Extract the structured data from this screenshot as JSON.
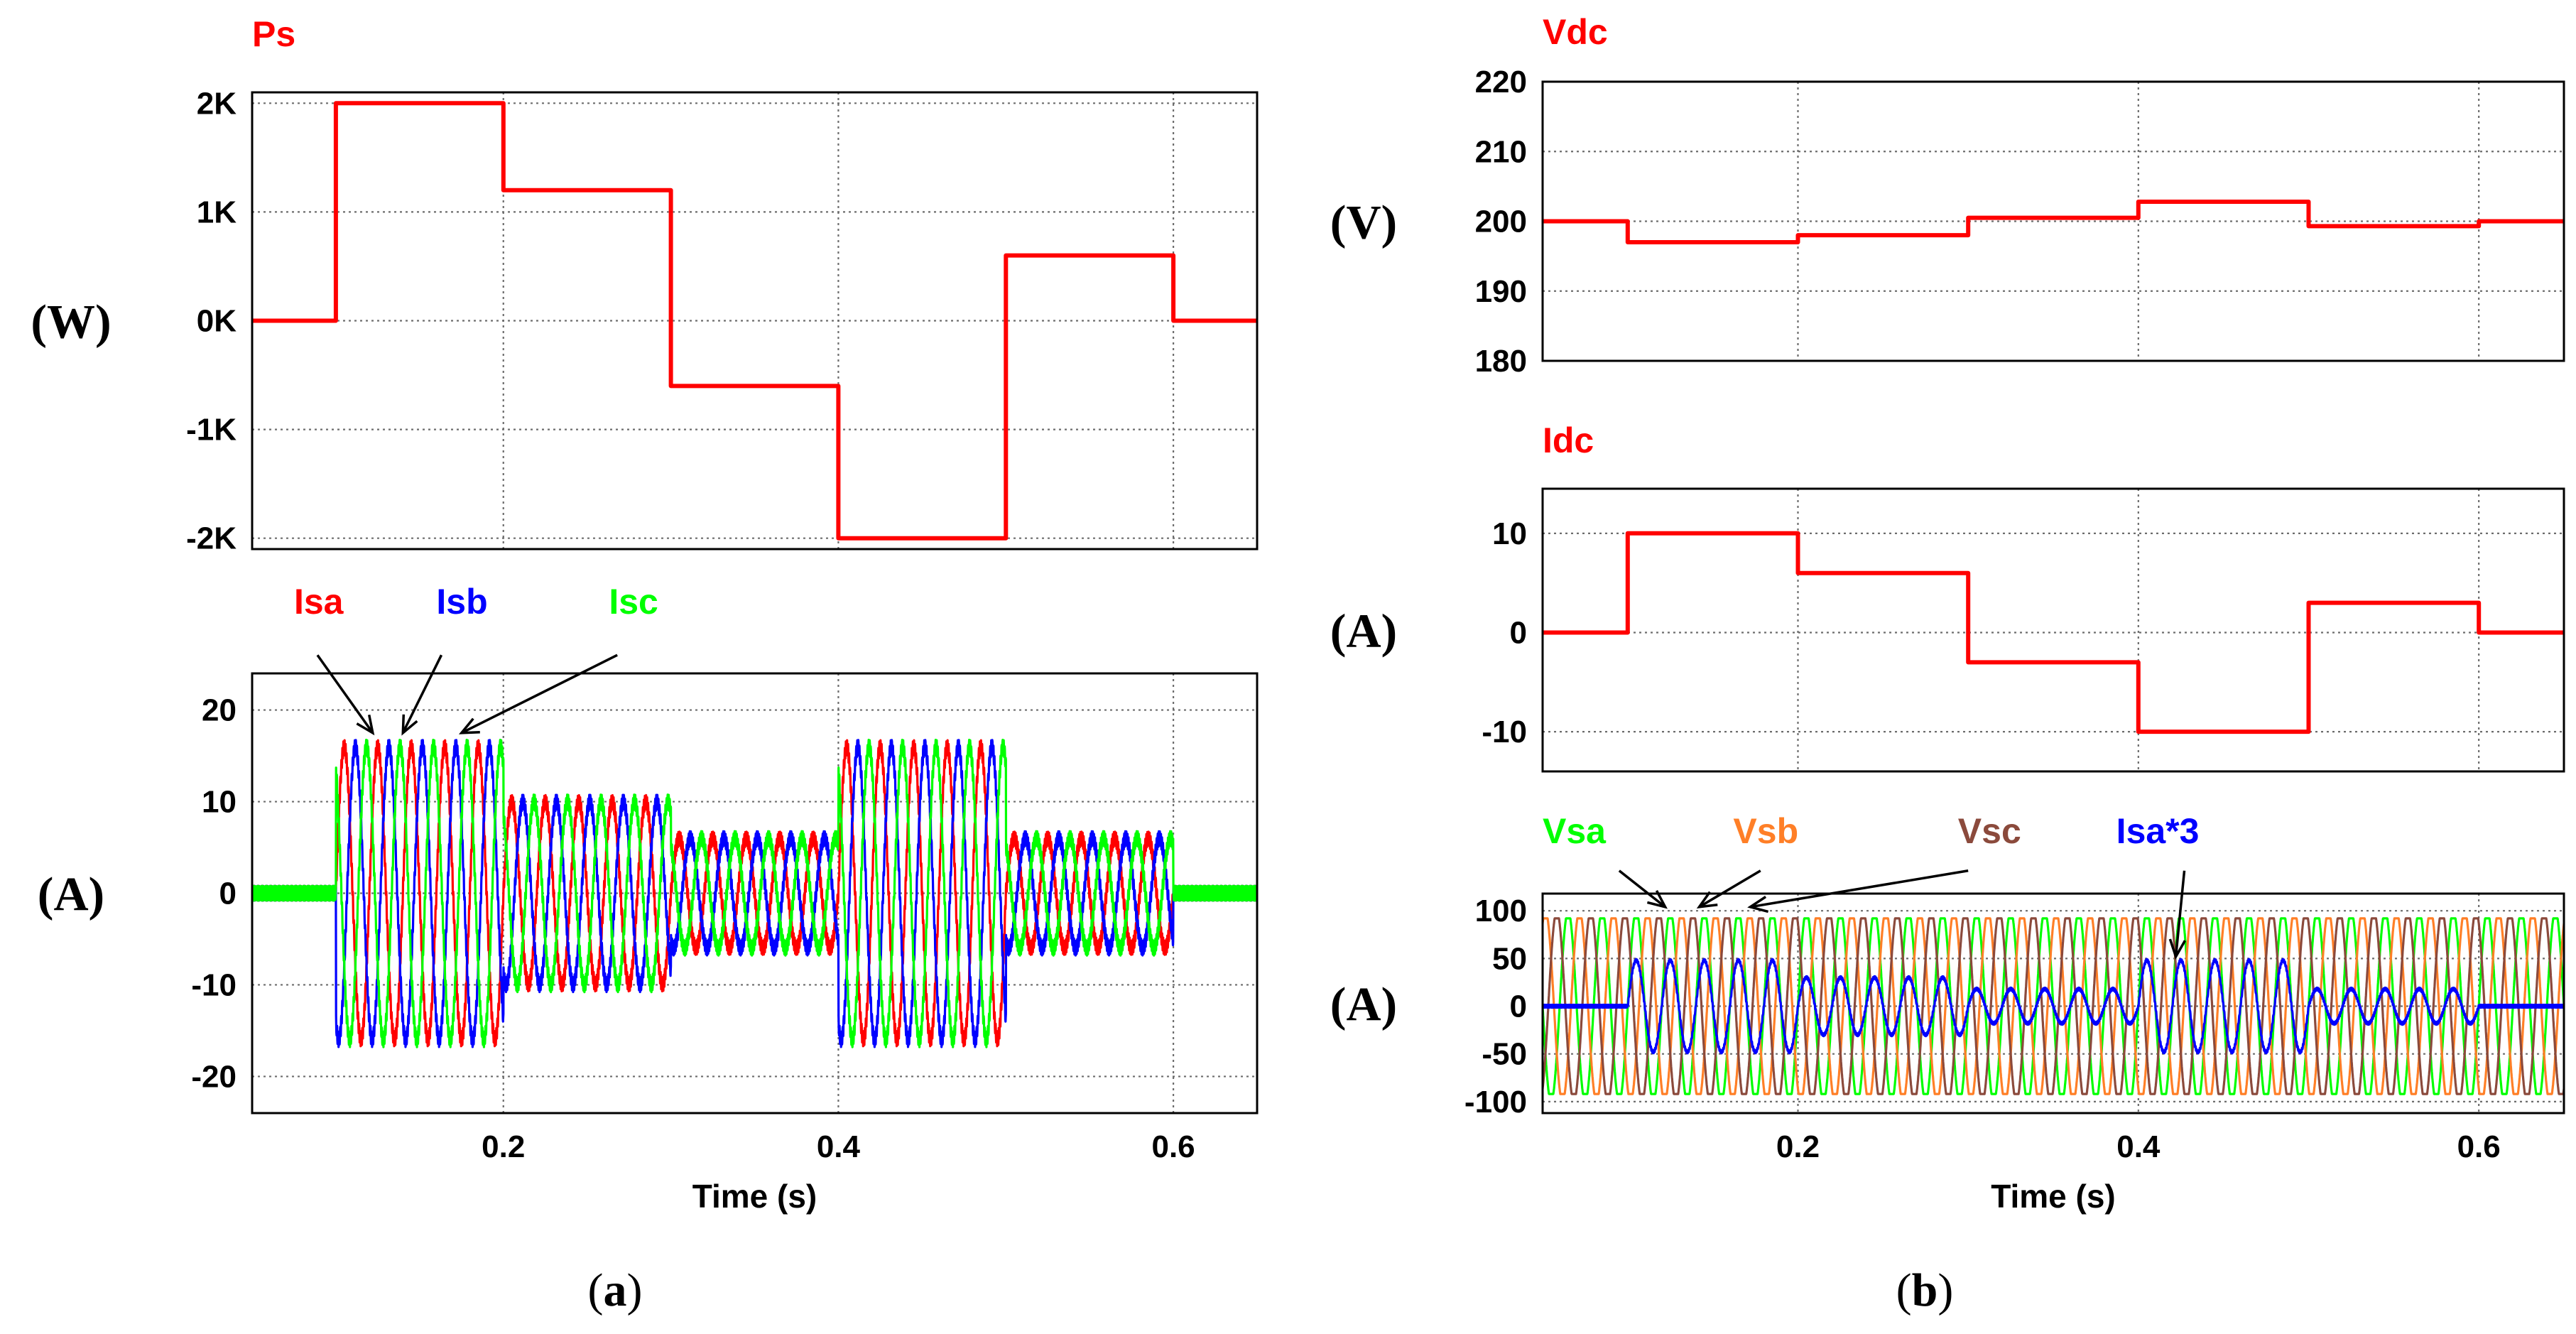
{
  "panel_captions": {
    "a": "a",
    "b": "b"
  },
  "chart_data": [
    {
      "id": "ps",
      "type": "line",
      "title": "Ps",
      "title_color": "#ff0000",
      "ylabel": "(W)",
      "xlabel": "",
      "xlim": [
        0.05,
        0.65
      ],
      "ylim": [
        -2100,
        2100
      ],
      "yticks": [
        2000,
        1000,
        0,
        -1000,
        -2000
      ],
      "ytick_labels": [
        "2K",
        "1K",
        "0K",
        "-1K",
        "-2K"
      ],
      "xticks": [
        0.2,
        0.4,
        0.6
      ],
      "xtick_labels": [],
      "series": [
        {
          "name": "Ps",
          "color": "#ff0000",
          "kind": "step",
          "segments": [
            [
              0.05,
              0.1,
              0
            ],
            [
              0.1,
              0.2,
              2000
            ],
            [
              0.2,
              0.3,
              1200
            ],
            [
              0.3,
              0.4,
              -600
            ],
            [
              0.4,
              0.5,
              -2000
            ],
            [
              0.5,
              0.6,
              600
            ],
            [
              0.6,
              0.65,
              0
            ]
          ]
        }
      ],
      "annotations": []
    },
    {
      "id": "is",
      "type": "line",
      "title": "",
      "ylabel": "(A)",
      "xlabel": "Time (s)",
      "xlim": [
        0.05,
        0.65
      ],
      "ylim": [
        -24,
        24
      ],
      "yticks": [
        20,
        10,
        0,
        -10,
        -20
      ],
      "ytick_labels": [
        "20",
        "10",
        "0",
        "-10",
        "-20"
      ],
      "xticks": [
        0.2,
        0.4,
        0.6
      ],
      "xtick_labels": [
        "0.2",
        "0.4",
        "0.6"
      ],
      "series": [
        {
          "name": "Isa",
          "color": "#ff0000",
          "kind": "sine",
          "phase_deg": 0,
          "freq_hz": 50,
          "clip": 0,
          "ripple": 0.8,
          "amp_segments": [
            [
              0.05,
              0.1,
              0
            ],
            [
              0.1,
              0.2,
              16
            ],
            [
              0.2,
              0.3,
              10
            ],
            [
              0.3,
              0.4,
              6
            ],
            [
              0.4,
              0.5,
              16
            ],
            [
              0.5,
              0.6,
              6
            ],
            [
              0.6,
              0.65,
              0
            ]
          ]
        },
        {
          "name": "Isb",
          "color": "#0000ff",
          "kind": "sine",
          "phase_deg": -120,
          "freq_hz": 50,
          "clip": 0,
          "ripple": 0.8,
          "amp_segments": [
            [
              0.05,
              0.1,
              0
            ],
            [
              0.1,
              0.2,
              16
            ],
            [
              0.2,
              0.3,
              10
            ],
            [
              0.3,
              0.4,
              6
            ],
            [
              0.4,
              0.5,
              16
            ],
            [
              0.5,
              0.6,
              6
            ],
            [
              0.6,
              0.65,
              0
            ]
          ]
        },
        {
          "name": "Isc",
          "color": "#00ff00",
          "kind": "sine",
          "phase_deg": 120,
          "freq_hz": 50,
          "clip": 0,
          "ripple": 0.8,
          "amp_segments": [
            [
              0.05,
              0.1,
              0
            ],
            [
              0.1,
              0.2,
              16
            ],
            [
              0.2,
              0.3,
              10
            ],
            [
              0.3,
              0.4,
              6
            ],
            [
              0.4,
              0.5,
              16
            ],
            [
              0.5,
              0.6,
              6
            ],
            [
              0.6,
              0.65,
              0
            ]
          ]
        }
      ],
      "annotations": [
        {
          "text": "Isa",
          "color": "#ff0000",
          "pos": [
            0.075,
            30.5
          ],
          "target": [
            0.122,
            17.5
          ],
          "from": [
            0.089,
            26
          ]
        },
        {
          "text": "Isb",
          "color": "#0000ff",
          "pos": [
            0.16,
            30.5
          ],
          "target": [
            0.14,
            17.5
          ],
          "from": [
            0.163,
            26
          ]
        },
        {
          "text": "Isc",
          "color": "#00ff00",
          "pos": [
            0.263,
            30.5
          ],
          "target": [
            0.175,
            17.5
          ],
          "from": [
            0.268,
            26
          ]
        }
      ]
    },
    {
      "id": "vdc",
      "type": "line",
      "title": "Vdc",
      "title_color": "#ff0000",
      "ylabel": "(V)",
      "xlabel": "",
      "xlim": [
        0.05,
        0.65
      ],
      "ylim": [
        180,
        220
      ],
      "yticks": [
        220,
        210,
        200,
        190,
        180
      ],
      "ytick_labels": [
        "220",
        "210",
        "200",
        "190",
        "180"
      ],
      "xticks": [
        0.2,
        0.4,
        0.6
      ],
      "xtick_labels": [],
      "series": [
        {
          "name": "Vdc",
          "color": "#ff0000",
          "kind": "step",
          "segments": [
            [
              0.05,
              0.1,
              200
            ],
            [
              0.1,
              0.2,
              197
            ],
            [
              0.2,
              0.3,
              198
            ],
            [
              0.3,
              0.4,
              200.5
            ],
            [
              0.4,
              0.5,
              202.8
            ],
            [
              0.5,
              0.6,
              199.3
            ],
            [
              0.6,
              0.65,
              200
            ]
          ]
        }
      ],
      "annotations": []
    },
    {
      "id": "idc",
      "type": "line",
      "title": "Idc",
      "title_color": "#ff0000",
      "ylabel": "(A)",
      "xlabel": "",
      "xlim": [
        0.05,
        0.65
      ],
      "ylim": [
        -14,
        14.5
      ],
      "yticks": [
        10,
        0,
        -10
      ],
      "ytick_labels": [
        "10",
        "0",
        "-10"
      ],
      "xticks": [
        0.2,
        0.4,
        0.6
      ],
      "xtick_labels": [],
      "series": [
        {
          "name": "Idc",
          "color": "#ff0000",
          "kind": "step",
          "segments": [
            [
              0.05,
              0.1,
              0
            ],
            [
              0.1,
              0.2,
              10
            ],
            [
              0.2,
              0.3,
              6
            ],
            [
              0.3,
              0.4,
              -3
            ],
            [
              0.4,
              0.5,
              -10
            ],
            [
              0.5,
              0.6,
              3
            ],
            [
              0.6,
              0.65,
              0
            ]
          ]
        }
      ],
      "annotations": []
    },
    {
      "id": "vs",
      "type": "line",
      "title": "",
      "ylabel": "(A)",
      "xlabel": "Time (s)",
      "xlim": [
        0.05,
        0.65
      ],
      "ylim": [
        -112,
        118
      ],
      "yticks": [
        100,
        50,
        0,
        -50,
        -100
      ],
      "ytick_labels": [
        "100",
        "50",
        "0",
        "-50",
        "-100"
      ],
      "xticks": [
        0.2,
        0.4,
        0.6
      ],
      "xtick_labels": [
        "0.2",
        "0.4",
        "0.6"
      ],
      "series": [
        {
          "name": "Vsa",
          "color": "#00ff00",
          "kind": "sine",
          "phase_deg": 0,
          "freq_hz": 50,
          "clip": 92,
          "ripple": 0,
          "amp_segments": [
            [
              0.05,
              0.65,
              100
            ]
          ]
        },
        {
          "name": "Vsb",
          "color": "#ff7f27",
          "kind": "sine",
          "phase_deg": -120,
          "freq_hz": 50,
          "clip": 92,
          "ripple": 0,
          "amp_segments": [
            [
              0.05,
              0.65,
              100
            ]
          ]
        },
        {
          "name": "Vsc",
          "color": "#8b4a3c",
          "kind": "sine",
          "phase_deg": 120,
          "freq_hz": 50,
          "clip": 92,
          "ripple": 0,
          "amp_segments": [
            [
              0.05,
              0.65,
              100
            ]
          ]
        },
        {
          "name": "Isa*3",
          "color": "#0000ff",
          "kind": "sine",
          "phase_deg": 0,
          "freq_hz": 50,
          "clip": 0,
          "ripple": 1.5,
          "amp_segments": [
            [
              0.05,
              0.1,
              0
            ],
            [
              0.1,
              0.2,
              48
            ],
            [
              0.2,
              0.3,
              30
            ],
            [
              0.3,
              0.4,
              18
            ],
            [
              0.4,
              0.5,
              48
            ],
            [
              0.5,
              0.6,
              18
            ],
            [
              0.6,
              0.65,
              0
            ]
          ]
        }
      ],
      "annotations": [
        {
          "text": "Vsa",
          "color": "#00ff00",
          "pos": [
            0.05,
            171
          ],
          "target": [
            0.122,
            104
          ],
          "from": [
            0.095,
            142
          ]
        },
        {
          "text": "Vsb",
          "color": "#ff7f27",
          "pos": [
            0.162,
            171
          ],
          "target": [
            0.142,
            104
          ],
          "from": [
            0.178,
            142
          ]
        },
        {
          "text": "Vsc",
          "color": "#8b4a3c",
          "pos": [
            0.294,
            171
          ],
          "target": [
            0.172,
            104
          ],
          "from": [
            0.3,
            142
          ]
        },
        {
          "text": "Isa*3",
          "color": "#0000ff",
          "pos": [
            0.387,
            171
          ],
          "target": [
            0.422,
            52
          ],
          "from": [
            0.427,
            142
          ]
        }
      ]
    }
  ]
}
